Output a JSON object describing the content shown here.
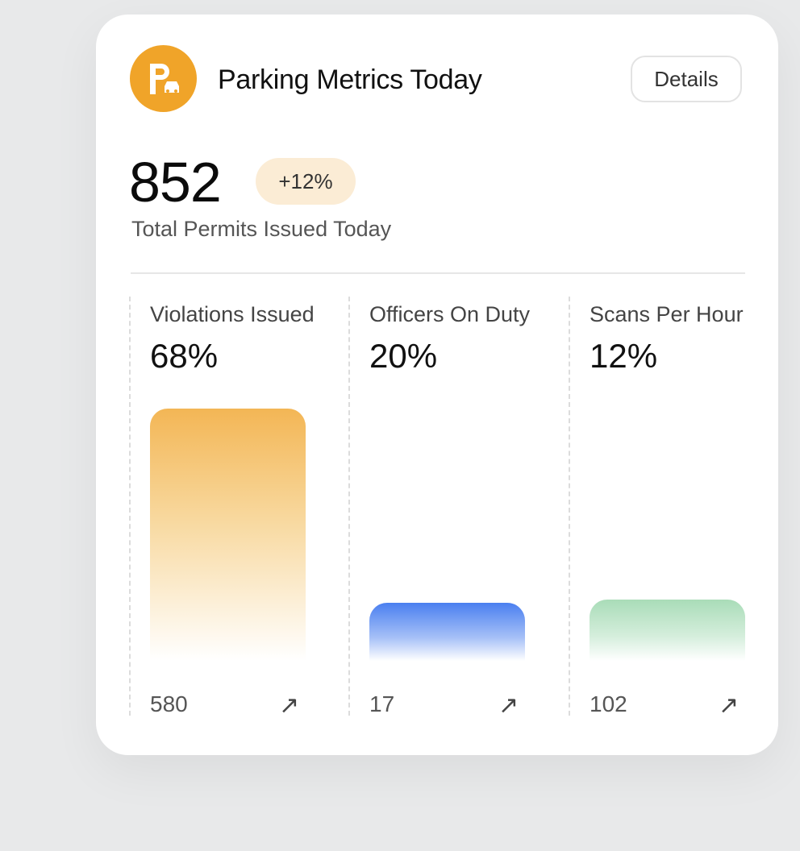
{
  "header": {
    "title": "Parking Metrics Today",
    "details_label": "Details",
    "logo_icon": "parking-car-icon"
  },
  "summary": {
    "total": "852",
    "change": "+12%",
    "caption": "Total Permits Issued Today"
  },
  "metrics": [
    {
      "label": "Violations Issued",
      "percent": "68%",
      "count": "580",
      "color": "#f2b54e"
    },
    {
      "label": "Officers On Duty",
      "percent": "20%",
      "count": "17",
      "color": "#4a7ff0"
    },
    {
      "label": "Scans Per Hour",
      "percent": "12%",
      "count": "102",
      "color": "#a9dcb8"
    }
  ],
  "arrow_glyph": "↗"
}
